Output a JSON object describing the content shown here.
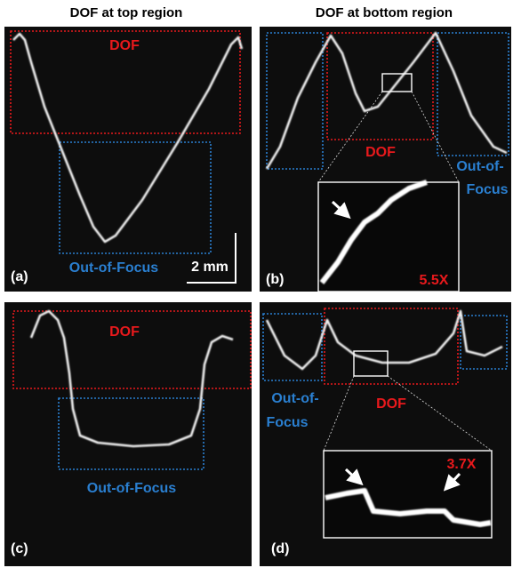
{
  "headers": [
    "DOF at top region",
    "DOF at bottom region"
  ],
  "panels": [
    {
      "label": "(a)",
      "dof": "DOF",
      "out_of_focus": "Out-of-Focus",
      "scale": "2 mm"
    },
    {
      "label": "(b)",
      "dof": "DOF",
      "out_of_focus": [
        "Out-of-",
        "Focus"
      ],
      "zoom": "5.5X"
    },
    {
      "label": "(c)",
      "dof": "DOF",
      "out_of_focus": "Out-of-Focus"
    },
    {
      "label": "(d)",
      "dof": "DOF",
      "out_of_focus": [
        "Out-of-",
        "Focus"
      ],
      "zoom": "3.7X"
    }
  ]
}
